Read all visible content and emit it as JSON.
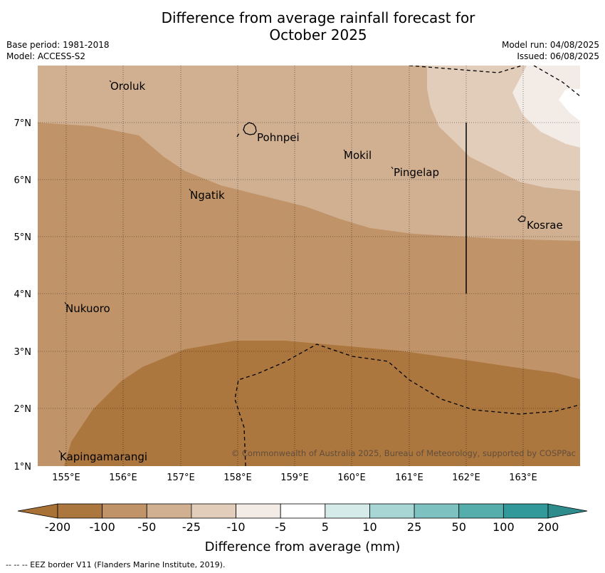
{
  "title_line1": "Difference from average rainfall forecast for",
  "title_line2": "October 2025",
  "base_period": "Base period: 1981-2018",
  "model": "Model: ACCESS-S2",
  "model_run": "Model run: 04/08/2025",
  "issued": "Issued: 06/08/2025",
  "copyright": "© Commonwealth of Australia 2025, Bureau of Meteorology, supported by COSPPac",
  "map": {
    "lon_ticks": [
      "155°E",
      "156°E",
      "157°E",
      "158°E",
      "159°E",
      "160°E",
      "161°E",
      "162°E",
      "163°E"
    ],
    "lat_ticks": [
      "7°N",
      "6°N",
      "5°N",
      "4°N",
      "3°N",
      "2°N",
      "1°N"
    ],
    "places": {
      "oroluk": "Oroluk",
      "pohnpei": "Pohnpei",
      "mokil": "Mokil",
      "pingelap": "Pingelap",
      "ngatik": "Ngatik",
      "kosrae": "Kosrae",
      "nukuoro": "Nukuoro",
      "kapingamarangi": "Kapingamarangi"
    }
  },
  "colorbar": {
    "labels": [
      "-200",
      "-100",
      "-50",
      "-25",
      "-10",
      "-5",
      "5",
      "10",
      "25",
      "50",
      "100",
      "200"
    ],
    "colors": [
      "#a87136",
      "#ac763f",
      "#c09468",
      "#d1b092",
      "#e2cdbb",
      "#f2ebe6",
      "#ffffff",
      "#d4ebea",
      "#a8d6d5",
      "#7dc1c0",
      "#55aeac",
      "#31999a",
      "#2e8d8c"
    ],
    "title": "Difference from average (mm)"
  },
  "footnote": "--  --  -- EEZ border V11 (Flanders Marine Institute, 2019)."
}
